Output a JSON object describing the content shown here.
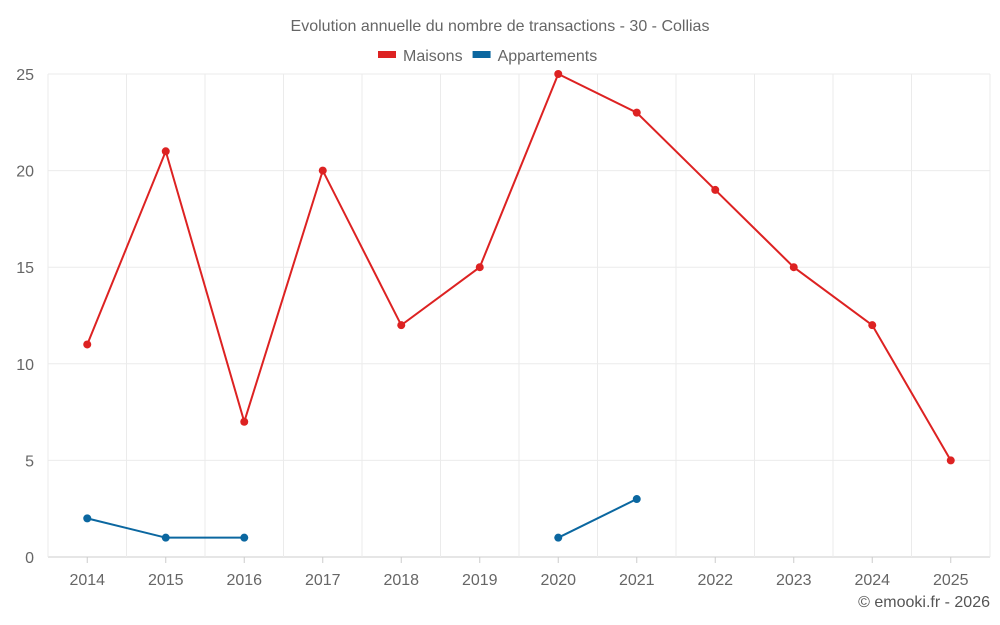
{
  "chart_data": {
    "type": "line",
    "title": "Evolution annuelle du nombre de transactions - 30 - Collias",
    "xlabel": "",
    "ylabel": "",
    "categories": [
      "2014",
      "2015",
      "2016",
      "2017",
      "2018",
      "2019",
      "2020",
      "2021",
      "2022",
      "2023",
      "2024",
      "2025"
    ],
    "ylim": [
      0,
      25
    ],
    "yticks": [
      0,
      5,
      10,
      15,
      20,
      25
    ],
    "grid": true,
    "legend_position": "top-center",
    "series": [
      {
        "name": "Maisons",
        "color": "#dd2222",
        "values": [
          11,
          21,
          7,
          20,
          12,
          15,
          25,
          23,
          19,
          15,
          12,
          5
        ]
      },
      {
        "name": "Appartements",
        "color": "#0b67a0",
        "values": [
          2,
          1,
          1,
          null,
          null,
          null,
          1,
          3,
          null,
          null,
          null,
          null
        ]
      }
    ]
  },
  "credit": "© emooki.fr - 2026"
}
